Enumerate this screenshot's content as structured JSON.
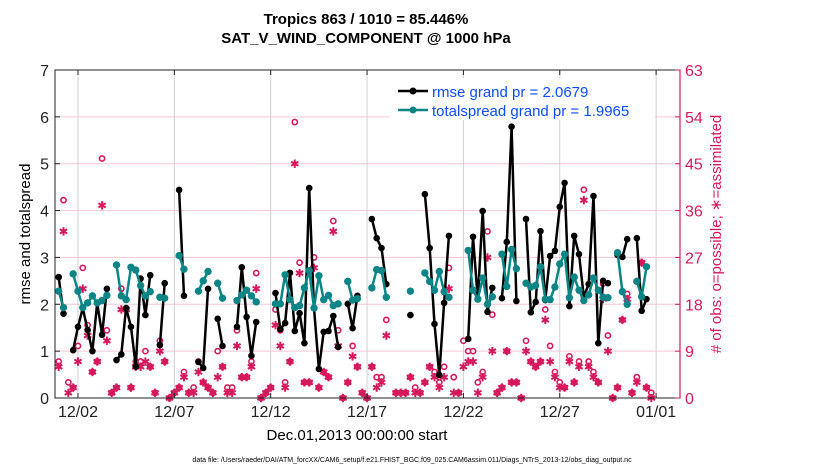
{
  "chart_data": {
    "type": "line",
    "title_line1": "Tropics 863 / 1010 = 85.446%",
    "title_line2": "SAT_V_WIND_COMPONENT @ 1000 hPa",
    "xlabel": "Dec.01,2013 00:00:00 start",
    "ylabel_left": "rmse and totalspread",
    "ylabel_right": "# of obs: o=possible; ∗=assimilated",
    "footer": "data file: /Users/raeder/DAI/ATM_forcXX/CAM6_setup/f.e21.FHIST_BGC.f09_025.CAM6assim.011/Diags_NTrS_2013-12/obs_diag_output.nc",
    "ylim_left": [
      0,
      7
    ],
    "ylim_right": [
      0,
      63
    ],
    "xlim": [
      "2013-11-30 19:24",
      "2014-01-02 05:45"
    ],
    "yticks_left": [
      "0",
      "1",
      "2",
      "3",
      "4",
      "5",
      "6",
      "7"
    ],
    "yticks_right": [
      "0",
      "9",
      "18",
      "27",
      "36",
      "45",
      "54",
      "63"
    ],
    "xticks": [
      {
        "date": "2013-12-02 00:00",
        "label": "12/02"
      },
      {
        "date": "2013-12-07 00:00",
        "label": "12/07"
      },
      {
        "date": "2013-12-12 00:00",
        "label": "12/12"
      },
      {
        "date": "2013-12-17 00:00",
        "label": "12/17"
      },
      {
        "date": "2013-12-22 00:00",
        "label": "12/22"
      },
      {
        "date": "2013-12-27 00:00",
        "label": "12/27"
      },
      {
        "date": "2014-01-01 00:00",
        "label": "01/01"
      }
    ],
    "grid": true,
    "legend_position": "top-right",
    "colors": {
      "rmse": "#000000",
      "spread": "#0b8585",
      "obs": "#d6195c",
      "legend_text": "#0a4dff",
      "grid_h": "#f3c6d6",
      "grid_v": "#d0d0d0"
    },
    "legend": [
      {
        "label": "rmse grand pr = 2.0679",
        "series": "rmse"
      },
      {
        "label": "totalspread grand pr = 1.9965",
        "series": "spread"
      }
    ],
    "x": [
      "2013-12-01 00:00",
      "2013-12-01 06:00",
      "2013-12-01 12:00",
      "2013-12-01 18:00",
      "2013-12-02 00:00",
      "2013-12-02 06:00",
      "2013-12-02 12:00",
      "2013-12-02 18:00",
      "2013-12-03 00:00",
      "2013-12-03 06:00",
      "2013-12-03 12:00",
      "2013-12-03 18:00",
      "2013-12-04 00:00",
      "2013-12-04 06:00",
      "2013-12-04 12:00",
      "2013-12-04 18:00",
      "2013-12-05 00:00",
      "2013-12-05 06:00",
      "2013-12-05 12:00",
      "2013-12-05 18:00",
      "2013-12-06 00:00",
      "2013-12-06 06:00",
      "2013-12-06 12:00",
      "2013-12-06 18:00",
      "2013-12-07 00:00",
      "2013-12-07 06:00",
      "2013-12-07 12:00",
      "2013-12-07 18:00",
      "2013-12-08 00:00",
      "2013-12-08 06:00",
      "2013-12-08 12:00",
      "2013-12-08 18:00",
      "2013-12-09 00:00",
      "2013-12-09 06:00",
      "2013-12-09 12:00",
      "2013-12-09 18:00",
      "2013-12-10 00:00",
      "2013-12-10 06:00",
      "2013-12-10 12:00",
      "2013-12-10 18:00",
      "2013-12-11 00:00",
      "2013-12-11 06:00",
      "2013-12-11 12:00",
      "2013-12-11 18:00",
      "2013-12-12 00:00",
      "2013-12-12 06:00",
      "2013-12-12 12:00",
      "2013-12-12 18:00",
      "2013-12-13 00:00",
      "2013-12-13 06:00",
      "2013-12-13 12:00",
      "2013-12-13 18:00",
      "2013-12-14 00:00",
      "2013-12-14 06:00",
      "2013-12-14 12:00",
      "2013-12-14 18:00",
      "2013-12-15 00:00",
      "2013-12-15 06:00",
      "2013-12-15 12:00",
      "2013-12-15 18:00",
      "2013-12-16 00:00",
      "2013-12-16 06:00",
      "2013-12-16 12:00",
      "2013-12-16 18:00",
      "2013-12-17 00:00",
      "2013-12-17 06:00",
      "2013-12-17 12:00",
      "2013-12-17 18:00",
      "2013-12-18 00:00",
      "2013-12-18 06:00",
      "2013-12-18 12:00",
      "2013-12-18 18:00",
      "2013-12-19 00:00",
      "2013-12-19 06:00",
      "2013-12-19 12:00",
      "2013-12-19 18:00",
      "2013-12-20 00:00",
      "2013-12-20 06:00",
      "2013-12-20 12:00",
      "2013-12-20 18:00",
      "2013-12-21 00:00",
      "2013-12-21 06:00",
      "2013-12-21 12:00",
      "2013-12-21 18:00",
      "2013-12-22 00:00",
      "2013-12-22 06:00",
      "2013-12-22 12:00",
      "2013-12-22 18:00",
      "2013-12-23 00:00",
      "2013-12-23 06:00",
      "2013-12-23 12:00",
      "2013-12-23 18:00",
      "2013-12-24 00:00",
      "2013-12-24 06:00",
      "2013-12-24 12:00",
      "2013-12-24 18:00",
      "2013-12-25 00:00",
      "2013-12-25 06:00",
      "2013-12-25 12:00",
      "2013-12-25 18:00",
      "2013-12-26 00:00",
      "2013-12-26 06:00",
      "2013-12-26 12:00",
      "2013-12-26 18:00",
      "2013-12-27 00:00",
      "2013-12-27 06:00",
      "2013-12-27 12:00",
      "2013-12-27 18:00",
      "2013-12-28 00:00",
      "2013-12-28 06:00",
      "2013-12-28 12:00",
      "2013-12-28 18:00",
      "2013-12-29 00:00",
      "2013-12-29 06:00",
      "2013-12-29 12:00",
      "2013-12-29 18:00",
      "2013-12-30 00:00",
      "2013-12-30 06:00",
      "2013-12-30 12:00",
      "2013-12-30 18:00",
      "2013-12-31 00:00",
      "2013-12-31 06:00",
      "2013-12-31 12:00",
      "2013-12-31 18:00"
    ],
    "series": [
      {
        "name": "rmse",
        "axis": "left",
        "values": [
          2.58,
          1.8,
          null,
          1.02,
          1.52,
          1.92,
          1.45,
          1.0,
          2.03,
          1.35,
          2.33,
          null,
          0.81,
          0.93,
          1.92,
          1.52,
          0.67,
          2.55,
          1.77,
          2.62,
          null,
          1.13,
          2.45,
          null,
          null,
          4.44,
          2.18,
          null,
          null,
          0.77,
          0.64,
          2.33,
          null,
          1.69,
          1.11,
          null,
          null,
          1.52,
          2.79,
          1.73,
          0.9,
          1.62,
          null,
          null,
          null,
          2.24,
          1.47,
          1.6,
          2.67,
          1.43,
          1.81,
          1.17,
          4.48,
          1.92,
          0.62,
          1.41,
          1.43,
          1.75,
          1.09,
          null,
          2.01,
          1.49,
          2.18,
          null,
          null,
          3.82,
          3.41,
          3.2,
          2.43,
          null,
          null,
          null,
          null,
          1.77,
          null,
          null,
          4.35,
          3.2,
          1.58,
          0.49,
          2.03,
          3.46,
          null,
          null,
          null,
          1.26,
          3.44,
          2.11,
          3.99,
          1.84,
          2.35,
          null,
          2.13,
          3.33,
          5.79,
          2.07,
          null,
          3.82,
          1.83,
          2.05,
          3.56,
          2.09,
          3.03,
          3.14,
          4.08,
          4.59,
          1.96,
          3.46,
          3.07,
          2.16,
          2.43,
          4.31,
          1.17,
          2.5,
          2.45,
          null,
          3.05,
          3.01,
          3.39,
          null,
          3.41,
          1.86,
          2.11,
          null
        ]
      },
      {
        "name": "totalspread",
        "axis": "left",
        "values": [
          2.28,
          1.93,
          null,
          2.65,
          2.28,
          1.93,
          2.03,
          2.18,
          2.03,
          2.08,
          2.19,
          null,
          2.84,
          2.18,
          2.1,
          2.79,
          2.73,
          2.4,
          2.18,
          2.27,
          null,
          2.15,
          2.13,
          null,
          null,
          3.04,
          2.75,
          null,
          null,
          2.28,
          2.5,
          2.7,
          null,
          2.45,
          2.13,
          null,
          null,
          2.08,
          2.2,
          2.3,
          2.18,
          2.05,
          null,
          null,
          null,
          2.01,
          2.01,
          2.63,
          2.1,
          1.93,
          1.97,
          2.35,
          2.72,
          1.92,
          2.61,
          2.1,
          2.19,
          1.97,
          2.01,
          null,
          2.49,
          2.09,
          2.12,
          null,
          null,
          2.35,
          2.74,
          2.72,
          2.15,
          null,
          null,
          null,
          null,
          2.28,
          null,
          null,
          2.67,
          2.49,
          2.3,
          2.7,
          2.27,
          2.15,
          null,
          null,
          null,
          3.15,
          2.3,
          2.11,
          2.56,
          2.0,
          2.16,
          null,
          3.07,
          2.38,
          3.17,
          2.76,
          null,
          2.45,
          2.37,
          2.4,
          2.8,
          2.11,
          2.1,
          2.37,
          2.86,
          3.07,
          2.14,
          2.58,
          2.3,
          2.08,
          2.2,
          2.56,
          2.3,
          2.15,
          2.14,
          null,
          3.1,
          2.27,
          2.0,
          null,
          2.49,
          2.16,
          2.8,
          null
        ]
      },
      {
        "name": "possible",
        "axis": "right",
        "marker": "o",
        "values": [
          7,
          38,
          3,
          2,
          10,
          25,
          14,
          5,
          7,
          46,
          13,
          1,
          2,
          21,
          17,
          2,
          7,
          7,
          9,
          6,
          1,
          11,
          7,
          0,
          1,
          2,
          5,
          1,
          2,
          7,
          3,
          2,
          1,
          9,
          6,
          2,
          2,
          13,
          4,
          4,
          7,
          24,
          0,
          1,
          2,
          17,
          13,
          3,
          7,
          53,
          26,
          3,
          3,
          27,
          2,
          5,
          4,
          34,
          13,
          0,
          3,
          10,
          6,
          1,
          0,
          6,
          4,
          4,
          15,
          null,
          1,
          1,
          1,
          4,
          2,
          1,
          3,
          6,
          5,
          3,
          6,
          25,
          4,
          1,
          11,
          9,
          9,
          3,
          5,
          32,
          16,
          1,
          2,
          9,
          3,
          3,
          0,
          11,
          7,
          6,
          7,
          17,
          10,
          5,
          3,
          2,
          8,
          3,
          7,
          40,
          7,
          5,
          3,
          22,
          12,
          0,
          2,
          15,
          20,
          1,
          4,
          26,
          2,
          1
        ]
      },
      {
        "name": "assimilated",
        "axis": "right",
        "marker": "*",
        "values": [
          6,
          32,
          1,
          2,
          7,
          21,
          12,
          5,
          7,
          37,
          11,
          1,
          2,
          17,
          17,
          2,
          6,
          6,
          7,
          6,
          1,
          9,
          7,
          0,
          1,
          2,
          4,
          1,
          1,
          5,
          3,
          2,
          1,
          4,
          6,
          1,
          1,
          10,
          4,
          4,
          6,
          21,
          0,
          1,
          2,
          14,
          10,
          2,
          7,
          45,
          24,
          3,
          3,
          25,
          2,
          5,
          4,
          32,
          10,
          0,
          3,
          8,
          6,
          1,
          0,
          6,
          2,
          3,
          12,
          null,
          1,
          1,
          1,
          4,
          1,
          1,
          3,
          6,
          4,
          2,
          4,
          21,
          1,
          1,
          6,
          7,
          7,
          1,
          4,
          27,
          9,
          1,
          2,
          9,
          3,
          3,
          0,
          9,
          7,
          6,
          7,
          15,
          7,
          4,
          2,
          2,
          7,
          3,
          6,
          38,
          6,
          4,
          3,
          19,
          9,
          0,
          2,
          15,
          19,
          1,
          3,
          26,
          2,
          0
        ]
      }
    ]
  }
}
